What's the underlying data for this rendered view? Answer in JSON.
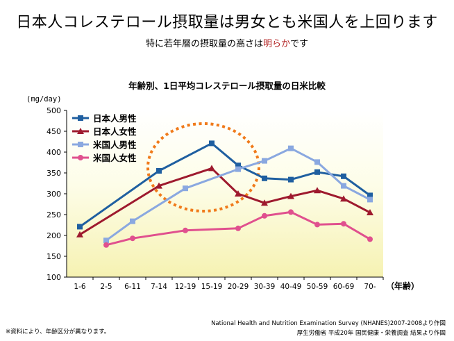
{
  "header": {
    "title": "日本人コレステロール摂取量は男女とも米国人を上回ります",
    "subtitle_prefix": "特に若年層の摂取量の高さは",
    "subtitle_highlight": "明らか",
    "subtitle_suffix": "です"
  },
  "chart_data": {
    "type": "line",
    "title": "年齢別、1日平均コレステロール摂取量の日米比較",
    "ylabel": "(mg/day)",
    "xlabel": "（年齢）",
    "ylim": [
      100,
      500
    ],
    "yticks": [
      100,
      150,
      200,
      250,
      300,
      350,
      400,
      450,
      500
    ],
    "categories": [
      "1-6",
      "2-5",
      "6-11",
      "7-14",
      "12-19",
      "15-19",
      "20-29",
      "30-39",
      "40-49",
      "50-59",
      "60-69",
      "70-"
    ],
    "legend_position": "top-left",
    "series": [
      {
        "name": "日本人男性",
        "color": "#1f5fa0",
        "marker": "square",
        "values": [
          221,
          null,
          null,
          355,
          null,
          421,
          368,
          337,
          334,
          352,
          342,
          296
        ]
      },
      {
        "name": "日本人女性",
        "color": "#9e1a2e",
        "marker": "triangle",
        "values": [
          202,
          null,
          null,
          319,
          null,
          361,
          300,
          278,
          294,
          308,
          288,
          255
        ]
      },
      {
        "name": "米国人男性",
        "color": "#8aa8e0",
        "marker": "square",
        "values": [
          null,
          188,
          234,
          null,
          313,
          null,
          359,
          379,
          409,
          376,
          319,
          286
        ]
      },
      {
        "name": "米国人女性",
        "color": "#e0508e",
        "marker": "circle",
        "values": [
          null,
          177,
          193,
          null,
          212,
          null,
          217,
          247,
          256,
          226,
          228,
          191
        ]
      }
    ]
  },
  "footnote": "※資料により、年齢区分が異なります。",
  "source": {
    "line1": "National Health and Nutrition Examination Survey (NHANES)2007-2008より作図",
    "line2": "厚生労働省 平成20年 国民健康・栄養調査 結果より作図"
  }
}
